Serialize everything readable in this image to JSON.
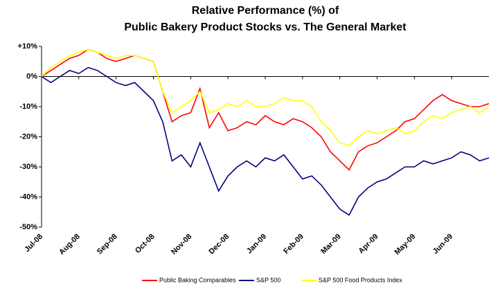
{
  "chart_data": {
    "type": "line",
    "title": "Relative Performance (%) of",
    "subtitle": "Public Bakery Product Stocks vs. The General Market",
    "categories": [
      "Jul-08",
      null,
      null,
      null,
      "Aug-08",
      null,
      null,
      null,
      "Sep-08",
      null,
      null,
      null,
      "Oct-08",
      null,
      null,
      null,
      "Nov-08",
      null,
      null,
      null,
      "Dec-08",
      null,
      null,
      null,
      "Jan-09",
      null,
      null,
      null,
      "Feb-09",
      null,
      null,
      null,
      "Mar-09",
      null,
      null,
      null,
      "Apr-09",
      null,
      null,
      null,
      "May-09",
      null,
      null,
      null,
      "Jun-09",
      null,
      null,
      null,
      null
    ],
    "series": [
      {
        "name": "Public Baking Comparables",
        "color": "#ff0000",
        "values": [
          0,
          2,
          4,
          6,
          7,
          9,
          8,
          6,
          5,
          6,
          7,
          6,
          5,
          -5,
          -15,
          -13,
          -12,
          -4,
          -17,
          -12,
          -18,
          -17,
          -15,
          -16,
          -13,
          -15,
          -16,
          -14,
          -15,
          -17,
          -20,
          -25,
          -28,
          -31,
          -25,
          -23,
          -22,
          -20,
          -18,
          -15,
          -14,
          -11,
          -8,
          -6,
          -8,
          -9,
          -10,
          -10,
          -9
        ]
      },
      {
        "name": "S&P 500",
        "color": "#000080",
        "values": [
          0,
          -2,
          0,
          2,
          1,
          3,
          2,
          0,
          -2,
          -3,
          -2,
          -5,
          -8,
          -15,
          -28,
          -26,
          -30,
          -22,
          -30,
          -38,
          -33,
          -30,
          -28,
          -30,
          -27,
          -28,
          -26,
          -30,
          -34,
          -33,
          -36,
          -40,
          -44,
          -46,
          -40,
          -37,
          -35,
          -34,
          -32,
          -30,
          -30,
          -28,
          -29,
          -28,
          -27,
          -25,
          -26,
          -28,
          -27
        ]
      },
      {
        "name": "S&P 500 Food Products Index",
        "color": "#ffff00",
        "values": [
          0,
          3,
          5,
          7,
          8,
          9,
          8,
          7,
          6,
          7,
          7,
          6,
          5,
          -5,
          -12,
          -10,
          -8,
          -5,
          -12,
          -11,
          -9,
          -10,
          -8,
          -10,
          -10,
          -9,
          -7,
          -8,
          -8,
          -10,
          -15,
          -18,
          -22,
          -23,
          -20,
          -18,
          -19,
          -18,
          -17,
          -19,
          -18,
          -15,
          -13,
          -14,
          -12,
          -11,
          -10,
          -12,
          -10
        ]
      }
    ],
    "ylim": [
      -50,
      10
    ],
    "yticks": [
      {
        "value": 10,
        "label": "+10%"
      },
      {
        "value": 0,
        "label": "0%"
      },
      {
        "value": -10,
        "label": "-10%"
      },
      {
        "value": -20,
        "label": "-20%"
      },
      {
        "value": -30,
        "label": "-30%"
      },
      {
        "value": -40,
        "label": "-40%"
      },
      {
        "value": -50,
        "label": "-50%"
      }
    ],
    "legend": "bottom"
  }
}
